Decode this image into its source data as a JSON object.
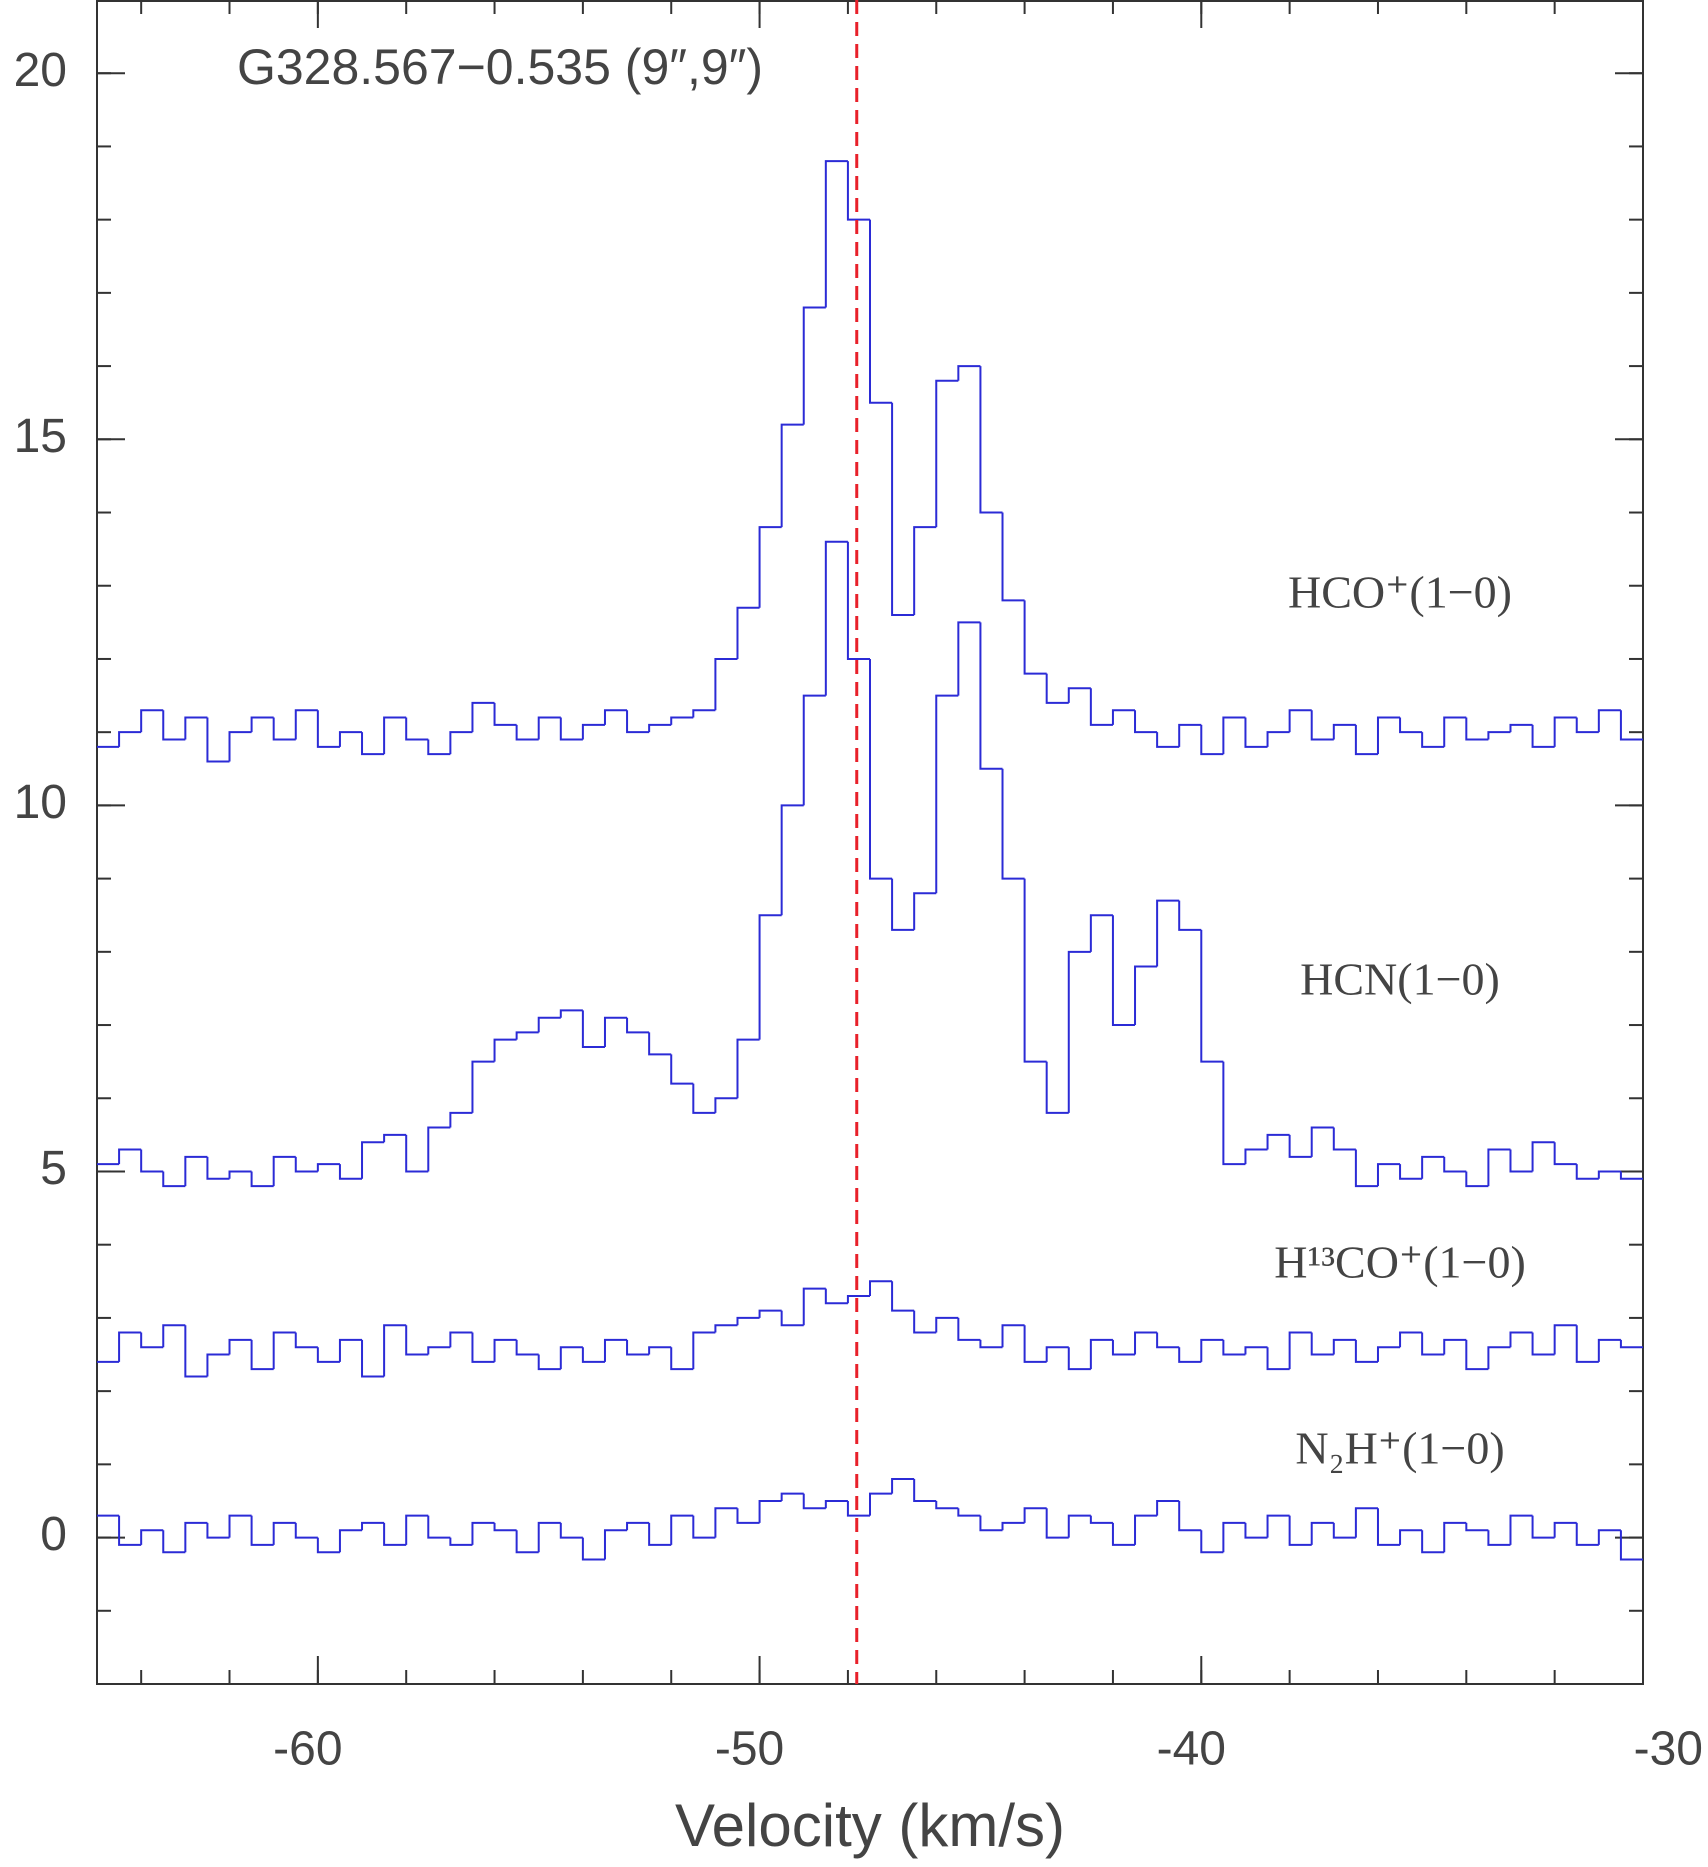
{
  "chart_data": {
    "type": "step",
    "title": "G328.567−0.535 (9″,9″)",
    "x_label": "Velocity (km/s)",
    "xlim": [
      -65,
      -30
    ],
    "ylim": [
      -2,
      21
    ],
    "xticks": [
      -60,
      -50,
      -40,
      -30
    ],
    "yticks": [
      0,
      5,
      10,
      15,
      20
    ],
    "minor_tick_step": {
      "x": 2,
      "y": 1
    },
    "vline": {
      "x": -47.8,
      "color": "#e8202a"
    },
    "x": [
      -64.75,
      -64.25,
      -63.75,
      -63.25,
      -62.75,
      -62.25,
      -61.75,
      -61.25,
      -60.75,
      -60.25,
      -59.75,
      -59.25,
      -58.75,
      -58.25,
      -57.75,
      -57.25,
      -56.75,
      -56.25,
      -55.75,
      -55.25,
      -54.75,
      -54.25,
      -53.75,
      -53.25,
      -52.75,
      -52.25,
      -51.75,
      -51.25,
      -50.75,
      -50.25,
      -49.75,
      -49.25,
      -48.75,
      -48.25,
      -47.75,
      -47.25,
      -46.75,
      -46.25,
      -45.75,
      -45.25,
      -44.75,
      -44.25,
      -43.75,
      -43.25,
      -42.75,
      -42.25,
      -41.75,
      -41.25,
      -40.75,
      -40.25,
      -39.75,
      -39.25,
      -38.75,
      -38.25,
      -37.75,
      -37.25,
      -36.75,
      -36.25,
      -35.75,
      -35.25,
      -34.75,
      -34.25,
      -33.75,
      -33.25,
      -32.75,
      -32.25,
      -31.75,
      -31.25,
      -30.75,
      -30.25
    ],
    "series": [
      {
        "name": "HCO⁺(1−0)",
        "color": "#2b2bd6",
        "values": [
          10.8,
          11.0,
          11.3,
          10.9,
          11.2,
          10.6,
          11.0,
          11.2,
          10.9,
          11.3,
          10.8,
          11.0,
          10.7,
          11.2,
          10.9,
          10.7,
          11.0,
          11.4,
          11.1,
          10.9,
          11.2,
          10.9,
          11.1,
          11.3,
          11.0,
          11.1,
          11.2,
          11.3,
          12.0,
          12.7,
          13.8,
          15.2,
          16.8,
          18.8,
          18.0,
          15.5,
          12.6,
          13.8,
          15.8,
          16.0,
          14.0,
          12.8,
          11.8,
          11.4,
          11.6,
          11.1,
          11.3,
          11.0,
          10.8,
          11.1,
          10.7,
          11.2,
          10.8,
          11.0,
          11.3,
          10.9,
          11.1,
          10.7,
          11.2,
          11.0,
          10.8,
          11.2,
          10.9,
          11.0,
          11.1,
          10.8,
          11.2,
          11.0,
          11.3,
          10.9
        ]
      },
      {
        "name": "HCN(1−0)",
        "color": "#2b2bd6",
        "values": [
          5.1,
          5.3,
          5.0,
          4.8,
          5.2,
          4.9,
          5.0,
          4.8,
          5.2,
          5.0,
          5.1,
          4.9,
          5.4,
          5.5,
          5.0,
          5.6,
          5.8,
          6.5,
          6.8,
          6.9,
          7.1,
          7.2,
          6.7,
          7.1,
          6.9,
          6.6,
          6.2,
          5.8,
          6.0,
          6.8,
          8.5,
          10.0,
          11.5,
          13.6,
          12.0,
          9.0,
          8.3,
          8.8,
          11.5,
          12.5,
          10.5,
          9.0,
          6.5,
          5.8,
          8.0,
          8.5,
          7.0,
          7.8,
          8.7,
          8.3,
          6.5,
          5.1,
          5.3,
          5.5,
          5.2,
          5.6,
          5.3,
          4.8,
          5.1,
          4.9,
          5.2,
          5.0,
          4.8,
          5.3,
          5.0,
          5.4,
          5.1,
          4.9,
          5.0,
          4.9
        ]
      },
      {
        "name": "H¹³CO⁺(1−0)",
        "color": "#2b2bd6",
        "values": [
          2.4,
          2.8,
          2.6,
          2.9,
          2.2,
          2.5,
          2.7,
          2.3,
          2.8,
          2.6,
          2.4,
          2.7,
          2.2,
          2.9,
          2.5,
          2.6,
          2.8,
          2.4,
          2.7,
          2.5,
          2.3,
          2.6,
          2.4,
          2.7,
          2.5,
          2.6,
          2.3,
          2.8,
          2.9,
          3.0,
          3.1,
          2.9,
          3.4,
          3.2,
          3.3,
          3.5,
          3.1,
          2.8,
          3.0,
          2.7,
          2.6,
          2.9,
          2.4,
          2.6,
          2.3,
          2.7,
          2.5,
          2.8,
          2.6,
          2.4,
          2.7,
          2.5,
          2.6,
          2.3,
          2.8,
          2.5,
          2.7,
          2.4,
          2.6,
          2.8,
          2.5,
          2.7,
          2.3,
          2.6,
          2.8,
          2.5,
          2.9,
          2.4,
          2.7,
          2.6
        ]
      },
      {
        "name": "N₂H⁺(1−0)",
        "color": "#2b2bd6",
        "values": [
          0.3,
          -0.1,
          0.1,
          -0.2,
          0.2,
          0.0,
          0.3,
          -0.1,
          0.2,
          0.0,
          -0.2,
          0.1,
          0.2,
          -0.1,
          0.3,
          0.0,
          -0.1,
          0.2,
          0.1,
          -0.2,
          0.2,
          0.0,
          -0.3,
          0.1,
          0.2,
          -0.1,
          0.3,
          0.0,
          0.4,
          0.2,
          0.5,
          0.6,
          0.4,
          0.5,
          0.3,
          0.6,
          0.8,
          0.5,
          0.4,
          0.3,
          0.1,
          0.2,
          0.4,
          0.0,
          0.3,
          0.2,
          -0.1,
          0.3,
          0.5,
          0.1,
          -0.2,
          0.2,
          0.0,
          0.3,
          -0.1,
          0.2,
          0.0,
          0.4,
          -0.1,
          0.1,
          -0.2,
          0.2,
          0.1,
          -0.1,
          0.3,
          0.0,
          0.2,
          -0.1,
          0.1,
          -0.3
        ]
      }
    ]
  }
}
